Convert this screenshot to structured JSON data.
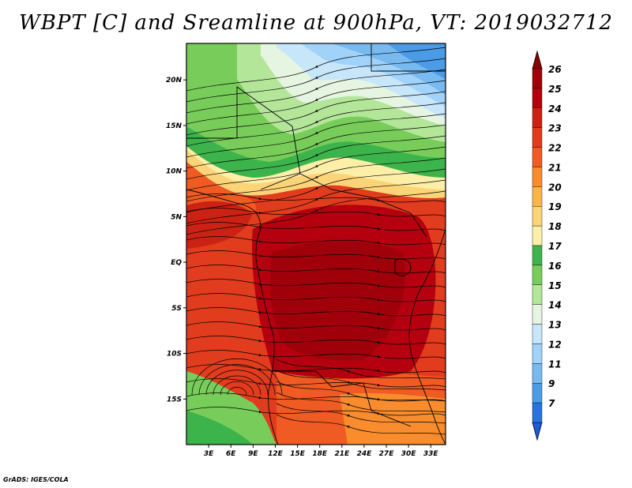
{
  "title": "WBPT [C] and Sreamline at 900hPa, VT: 2019032712",
  "footer": "GrADS: IGES/COLA",
  "map": {
    "lon_range": [
      0,
      35
    ],
    "lat_range": [
      -20,
      24
    ],
    "lat_ticks": [
      {
        "value": 20,
        "label": "20N"
      },
      {
        "value": 15,
        "label": "15N"
      },
      {
        "value": 10,
        "label": "10N"
      },
      {
        "value": 5,
        "label": "5N"
      },
      {
        "value": 0,
        "label": "EQ"
      },
      {
        "value": -5,
        "label": "5S"
      },
      {
        "value": -10,
        "label": "10S"
      },
      {
        "value": -15,
        "label": "15S"
      }
    ],
    "lon_ticks": [
      {
        "value": 3,
        "label": "3E"
      },
      {
        "value": 6,
        "label": "6E"
      },
      {
        "value": 9,
        "label": "9E"
      },
      {
        "value": 12,
        "label": "12E"
      },
      {
        "value": 15,
        "label": "15E"
      },
      {
        "value": 18,
        "label": "18E"
      },
      {
        "value": 21,
        "label": "21E"
      },
      {
        "value": 24,
        "label": "24E"
      },
      {
        "value": 27,
        "label": "27E"
      },
      {
        "value": 30,
        "label": "30E"
      },
      {
        "value": 33,
        "label": "33E"
      }
    ]
  },
  "colorbar": {
    "levels": [
      {
        "label": "26",
        "color": "#a0000a"
      },
      {
        "label": "25",
        "color": "#b4000f"
      },
      {
        "label": "24",
        "color": "#cc2214"
      },
      {
        "label": "23",
        "color": "#e13c1e"
      },
      {
        "label": "22",
        "color": "#f05a23"
      },
      {
        "label": "21",
        "color": "#f98c2d"
      },
      {
        "label": "20",
        "color": "#fbb44c"
      },
      {
        "label": "19",
        "color": "#fcd478"
      },
      {
        "label": "18",
        "color": "#fdeea8"
      },
      {
        "label": "17",
        "color": "#3cb44b"
      },
      {
        "label": "16",
        "color": "#78cd5a"
      },
      {
        "label": "15",
        "color": "#b4e69a"
      },
      {
        "label": "14",
        "color": "#e6f5e1"
      },
      {
        "label": "13",
        "color": "#c8e6fa"
      },
      {
        "label": "12",
        "color": "#a0d2fa"
      },
      {
        "label": "11",
        "color": "#78b9f0"
      },
      {
        "label": "9",
        "color": "#4b9be6"
      },
      {
        "label": "7",
        "color": "#2874dc"
      }
    ],
    "top_arrow_color": "#8c0000",
    "bottom_arrow_color": "#1e5adc"
  }
}
